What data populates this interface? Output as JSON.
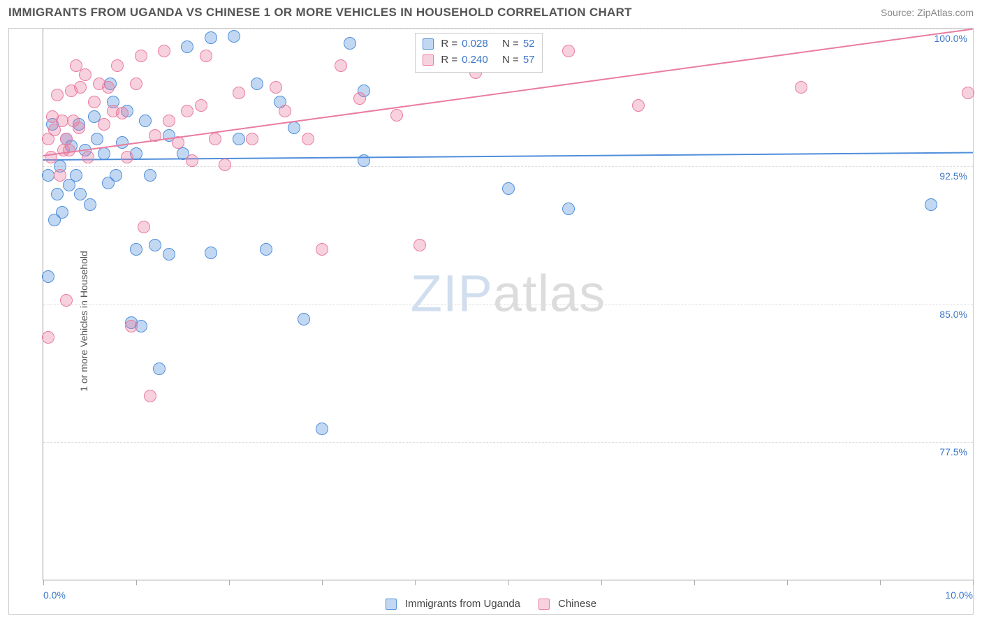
{
  "title": "IMMIGRANTS FROM UGANDA VS CHINESE 1 OR MORE VEHICLES IN HOUSEHOLD CORRELATION CHART",
  "source": "Source: ZipAtlas.com",
  "ylabel": "1 or more Vehicles in Household",
  "watermark": {
    "a": "ZIP",
    "b": "atlas"
  },
  "chart": {
    "type": "scatter",
    "background_color": "#ffffff",
    "grid_color": "#dddddd",
    "axis_color": "#999999",
    "xlim": [
      0.0,
      10.0
    ],
    "ylim": [
      70.0,
      100.0
    ],
    "xticks": [
      0,
      1,
      2,
      3,
      4,
      5,
      6,
      7,
      8,
      9,
      10
    ],
    "xtick_labels": {
      "0": "0.0%",
      "10": "10.0%"
    },
    "xtick_label_color": "#3a76c9",
    "yticks": [
      77.5,
      85.0,
      92.5,
      100.0
    ],
    "ytick_labels": [
      "77.5%",
      "85.0%",
      "92.5%",
      "100.0%"
    ],
    "ytick_label_color": "#3a76c9",
    "marker_radius": 9,
    "marker_outline_alpha": 0.9,
    "marker_fill_alpha": 0.35,
    "trend_line_width": 2
  },
  "series": [
    {
      "key": "uganda",
      "name": "Immigrants from Uganda",
      "color": "#4f8edb",
      "fill": "rgba(79,142,219,0.35)",
      "R": "0.028",
      "N": "52",
      "trend": {
        "x1": 0.0,
        "y1": 92.9,
        "x2": 10.0,
        "y2": 93.3
      },
      "points": [
        [
          0.05,
          92.0
        ],
        [
          0.1,
          94.8
        ],
        [
          0.12,
          89.6
        ],
        [
          0.15,
          91.0
        ],
        [
          0.18,
          92.5
        ],
        [
          0.2,
          90.0
        ],
        [
          0.25,
          94.0
        ],
        [
          0.28,
          91.5
        ],
        [
          0.05,
          86.5
        ],
        [
          0.3,
          93.6
        ],
        [
          0.35,
          92.0
        ],
        [
          0.38,
          94.8
        ],
        [
          0.4,
          91.0
        ],
        [
          0.45,
          93.4
        ],
        [
          0.5,
          90.4
        ],
        [
          0.55,
          95.2
        ],
        [
          0.58,
          94.0
        ],
        [
          0.65,
          93.2
        ],
        [
          0.7,
          91.6
        ],
        [
          0.72,
          97.0
        ],
        [
          0.75,
          96.0
        ],
        [
          0.78,
          92.0
        ],
        [
          0.85,
          93.8
        ],
        [
          0.9,
          95.5
        ],
        [
          0.95,
          84.0
        ],
        [
          1.0,
          88.0
        ],
        [
          1.0,
          93.2
        ],
        [
          1.05,
          83.8
        ],
        [
          1.1,
          95.0
        ],
        [
          1.15,
          92.0
        ],
        [
          1.2,
          88.2
        ],
        [
          1.25,
          81.5
        ],
        [
          1.35,
          87.7
        ],
        [
          1.35,
          94.2
        ],
        [
          1.5,
          93.2
        ],
        [
          1.55,
          99.0
        ],
        [
          1.8,
          87.8
        ],
        [
          1.8,
          99.5
        ],
        [
          2.05,
          99.6
        ],
        [
          2.1,
          94.0
        ],
        [
          2.3,
          97.0
        ],
        [
          2.4,
          88.0
        ],
        [
          2.55,
          96.0
        ],
        [
          2.7,
          94.6
        ],
        [
          2.8,
          84.2
        ],
        [
          3.0,
          78.2
        ],
        [
          3.3,
          99.2
        ],
        [
          3.45,
          96.6
        ],
        [
          3.45,
          92.8
        ],
        [
          5.0,
          91.3
        ],
        [
          5.65,
          90.2
        ],
        [
          9.55,
          90.4
        ]
      ]
    },
    {
      "key": "chinese",
      "name": "Chinese",
      "color": "#e97ca0",
      "fill": "rgba(233,124,160,0.35)",
      "R": "0.240",
      "N": "57",
      "trend": {
        "x1": 0.0,
        "y1": 93.1,
        "x2": 10.0,
        "y2": 100.0
      },
      "points": [
        [
          0.05,
          94.0
        ],
        [
          0.05,
          83.2
        ],
        [
          0.08,
          93.0
        ],
        [
          0.1,
          95.2
        ],
        [
          0.12,
          94.5
        ],
        [
          0.15,
          96.4
        ],
        [
          0.18,
          92.0
        ],
        [
          0.2,
          95.0
        ],
        [
          0.22,
          93.4
        ],
        [
          0.25,
          94.0
        ],
        [
          0.25,
          85.2
        ],
        [
          0.28,
          93.4
        ],
        [
          0.3,
          96.6
        ],
        [
          0.32,
          95.0
        ],
        [
          0.35,
          98.0
        ],
        [
          0.38,
          94.6
        ],
        [
          0.4,
          96.8
        ],
        [
          0.45,
          97.5
        ],
        [
          0.48,
          93.0
        ],
        [
          0.55,
          96.0
        ],
        [
          0.6,
          97.0
        ],
        [
          0.65,
          94.8
        ],
        [
          0.7,
          96.8
        ],
        [
          0.75,
          95.5
        ],
        [
          0.8,
          98.0
        ],
        [
          0.85,
          95.4
        ],
        [
          0.9,
          93.0
        ],
        [
          0.95,
          83.8
        ],
        [
          1.0,
          97.0
        ],
        [
          1.05,
          98.5
        ],
        [
          1.08,
          89.2
        ],
        [
          1.15,
          80.0
        ],
        [
          1.2,
          94.2
        ],
        [
          1.3,
          98.8
        ],
        [
          1.35,
          95.0
        ],
        [
          1.45,
          93.8
        ],
        [
          1.55,
          95.5
        ],
        [
          1.6,
          92.8
        ],
        [
          1.7,
          95.8
        ],
        [
          1.75,
          98.5
        ],
        [
          1.85,
          94.0
        ],
        [
          1.95,
          92.6
        ],
        [
          2.1,
          96.5
        ],
        [
          2.25,
          94.0
        ],
        [
          2.5,
          96.8
        ],
        [
          2.6,
          95.5
        ],
        [
          2.85,
          94.0
        ],
        [
          3.0,
          88.0
        ],
        [
          3.2,
          98.0
        ],
        [
          3.4,
          96.2
        ],
        [
          3.8,
          95.3
        ],
        [
          4.05,
          88.2
        ],
        [
          4.65,
          97.6
        ],
        [
          5.65,
          98.8
        ],
        [
          6.4,
          95.8
        ],
        [
          8.15,
          96.8
        ],
        [
          9.95,
          96.5
        ]
      ]
    }
  ],
  "stats_box": {
    "label_r": "R =",
    "label_n": "N ="
  },
  "legend": {
    "items": [
      {
        "key": "uganda",
        "label": "Immigrants from Uganda"
      },
      {
        "key": "chinese",
        "label": "Chinese"
      }
    ]
  }
}
